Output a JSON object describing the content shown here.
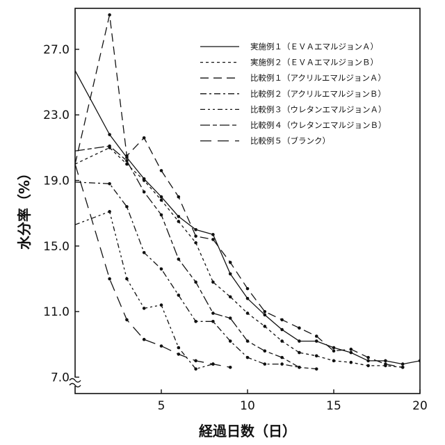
{
  "chart_data": {
    "type": "line",
    "title": "",
    "xlabel": "経過日数（日）",
    "ylabel": "水分率（%）",
    "xlim": [
      0,
      20
    ],
    "ylim": [
      6.0,
      29.5
    ],
    "x_ticks": [
      5,
      10,
      15,
      20
    ],
    "x_tick_labels": [
      "5",
      "10",
      "15",
      "20"
    ],
    "y_ticks": [
      7.0,
      11.0,
      15.0,
      19.0,
      23.0,
      27.0
    ],
    "y_tick_labels": [
      "7.0",
      "11.0",
      "15.0",
      "19.0",
      "23.0",
      "27.0"
    ],
    "axis_break": "≈",
    "grid": false,
    "legend_position": "top-right",
    "series": [
      {
        "name": "実施例１（ＥＶＡエマルジョンＡ）",
        "dash": "solid",
        "x": [
          0,
          2,
          3,
          4,
          5,
          6,
          7,
          8,
          9,
          10,
          11,
          12,
          13,
          14,
          15,
          16,
          17,
          18,
          19,
          20
        ],
        "y": [
          25.7,
          21.8,
          20.4,
          19.1,
          18.0,
          16.8,
          16.0,
          15.7,
          13.3,
          11.8,
          10.8,
          9.9,
          9.2,
          9.2,
          8.8,
          8.5,
          8.0,
          8.0,
          7.8,
          8.0
        ]
      },
      {
        "name": "実施例２（ＥＶＡエマルジョンＢ）",
        "dash": "dotted",
        "x": [
          0,
          2,
          3,
          4,
          5,
          6,
          7,
          8,
          9,
          10,
          11,
          12,
          13,
          14,
          15,
          16,
          17,
          18,
          19
        ],
        "y": [
          20.0,
          21.0,
          20.0,
          19.0,
          17.8,
          16.5,
          15.2,
          12.8,
          11.9,
          10.9,
          10.1,
          9.2,
          8.5,
          8.3,
          8.0,
          7.9,
          7.7,
          7.7,
          7.6
        ]
      },
      {
        "name": "比較例１（アクリルエマルジョンＡ）",
        "dash": "long-dash",
        "x": [
          0,
          2,
          3,
          4,
          5,
          6,
          7,
          8,
          9,
          10,
          11,
          12,
          13,
          14,
          15,
          16,
          17,
          18,
          19
        ],
        "y": [
          20.0,
          29.1,
          20.5,
          21.6,
          19.6,
          18.0,
          15.6,
          15.4,
          14.0,
          12.4,
          11.0,
          10.5,
          10.0,
          9.5,
          8.6,
          8.7,
          8.2,
          7.8,
          7.6
        ]
      },
      {
        "name": "比較例２（アクリルエマルジョンＢ）",
        "dash": "dash-dot",
        "x": [
          0,
          2,
          3,
          4,
          5,
          6,
          7,
          8,
          9,
          10,
          11,
          12,
          13
        ],
        "y": [
          18.9,
          18.8,
          17.4,
          14.6,
          13.6,
          12.0,
          10.4,
          10.4,
          9.2,
          8.2,
          7.8,
          7.8,
          7.6
        ]
      },
      {
        "name": "比較例３（ウレタンエマルジョンＡ）",
        "dash": "dash-dot-dot",
        "x": [
          0,
          2,
          3,
          4,
          5,
          6,
          7,
          8
        ],
        "y": [
          16.3,
          17.1,
          13.0,
          11.2,
          11.4,
          8.8,
          7.5,
          7.8
        ]
      },
      {
        "name": "比較例４（ウレタンエマルジョンＢ）",
        "dash": "long-short",
        "x": [
          0,
          2,
          3,
          4,
          5,
          6,
          7,
          8,
          9,
          10,
          11,
          12,
          13,
          14
        ],
        "y": [
          20.8,
          21.1,
          20.2,
          18.3,
          16.9,
          14.2,
          12.8,
          10.9,
          10.6,
          9.2,
          8.6,
          8.2,
          7.6,
          7.5
        ]
      },
      {
        "name": "比較例５（ブランク）",
        "dash": "medium-dash",
        "x": [
          0,
          2,
          3,
          4,
          5,
          6,
          7,
          8,
          9
        ],
        "y": [
          20.0,
          13.0,
          10.5,
          9.3,
          8.9,
          8.4,
          8.0,
          7.8,
          7.6
        ]
      }
    ]
  }
}
